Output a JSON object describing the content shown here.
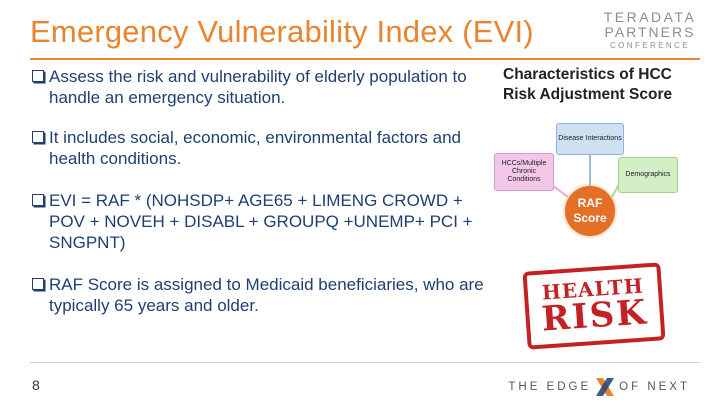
{
  "slide": {
    "title": "Emergency Vulnerability Index (EVI)",
    "page_number": "8"
  },
  "logo": {
    "line1": "TERADATA",
    "line2": "PARTNERS",
    "line3": "CONFERENCE"
  },
  "bullets": [
    "Assess the risk and vulnerability of elderly population to handle an emergency situation.",
    "It includes social, economic, environmental factors and health conditions.",
    "EVI = RAF * (NOHSDP+ AGE65 + LIMENG CROWD + POV + NOVEH + DISABL + GROUPQ +UNEMP+ PCI + SNGPNT)",
    "RAF Score is assigned to Medicaid beneficiaries, who are typically 65 years and older."
  ],
  "figure": {
    "title": "Characteristics of HCC Risk Adjustment Score",
    "disease": "Disease Interactions",
    "hcc": "HCCs/Multiple Chronic Conditions",
    "demographics": "Demographics",
    "raf_line1": "RAF",
    "raf_line2": "Score"
  },
  "stamp": {
    "line1": "HEALTH",
    "line2": "RISK"
  },
  "footer": {
    "left": "THE EDGE",
    "right": "OF NEXT"
  },
  "colors": {
    "accent": "#e8852e",
    "body_text": "#1f3f72",
    "stamp": "#c42124"
  }
}
